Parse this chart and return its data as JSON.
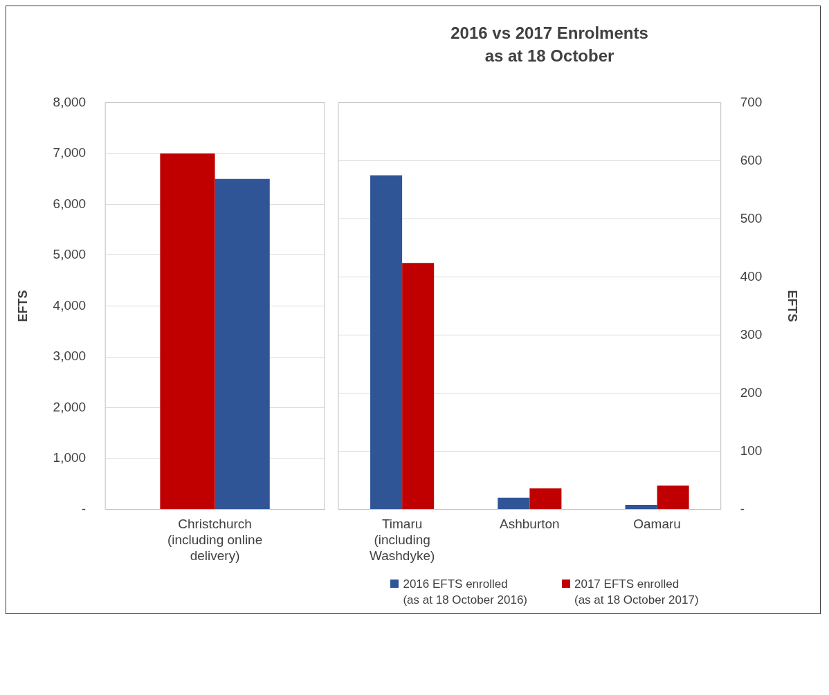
{
  "chart_data": [
    {
      "type": "bar",
      "categories": [
        "Christchurch\n(including online\ndelivery)"
      ],
      "ylabel": "EFTS",
      "ylim": [
        0,
        8000
      ],
      "yticks": [
        {
          "value": 0,
          "label": "-"
        },
        {
          "value": 1000,
          "label": "1,000"
        },
        {
          "value": 2000,
          "label": "2,000"
        },
        {
          "value": 3000,
          "label": "3,000"
        },
        {
          "value": 4000,
          "label": "4,000"
        },
        {
          "value": 5000,
          "label": "5,000"
        },
        {
          "value": 6000,
          "label": "6,000"
        },
        {
          "value": 7000,
          "label": "7,000"
        },
        {
          "value": 8000,
          "label": "8,000"
        }
      ],
      "grid": "y",
      "series": [
        {
          "color": "#c00000",
          "values": [
            7000
          ]
        },
        {
          "color": "#2f5597",
          "values": [
            6500
          ]
        }
      ]
    },
    {
      "type": "bar",
      "title": "2016 vs 2017 Enrolments\nas at 18 October",
      "categories": [
        "Timaru\n(including\nWashdyke)",
        "Ashburton",
        "Oamaru"
      ],
      "y2label": "EFTS",
      "y2lim": [
        0,
        700
      ],
      "y2ticks": [
        {
          "value": 0,
          "label": "-"
        },
        100,
        200,
        300,
        400,
        500,
        600,
        700
      ],
      "grid": "y",
      "legend": "bottom",
      "series": [
        {
          "name": "2016 EFTS enrolled\n(as at 18 October 2016)",
          "color": "#2f5597",
          "axis": "y2",
          "values": [
            575,
            20,
            8
          ]
        },
        {
          "name": "2017 EFTS enrolled\n(as at 18 October 2017)",
          "color": "#c00000",
          "axis": "y2",
          "values": [
            424,
            36,
            41
          ]
        }
      ]
    }
  ]
}
